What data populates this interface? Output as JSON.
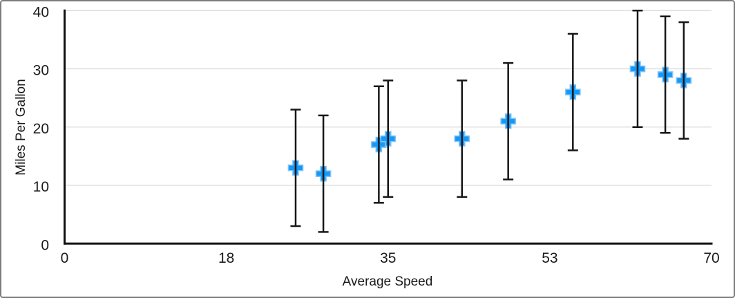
{
  "chart_data": {
    "type": "scatter",
    "title": "",
    "xlabel": "Average Speed",
    "ylabel": "Miles Per Gallon",
    "xlim": [
      0,
      70
    ],
    "ylim": [
      0,
      40
    ],
    "grid": "horizontal-only",
    "legend_position": "none",
    "x_ticks": [
      {
        "value": 0,
        "label": "0"
      },
      {
        "value": 17.5,
        "label": "18"
      },
      {
        "value": 35,
        "label": "35"
      },
      {
        "value": 52.5,
        "label": "53"
      },
      {
        "value": 70,
        "label": "70"
      }
    ],
    "y_ticks": [
      {
        "value": 0,
        "label": "0"
      },
      {
        "value": 10,
        "label": "10"
      },
      {
        "value": 20,
        "label": "20"
      },
      {
        "value": 30,
        "label": "30"
      },
      {
        "value": 40,
        "label": "40"
      }
    ],
    "series": [
      {
        "name": "Miles Per Gallon",
        "marker": "plus",
        "marker_color": "#1598F6",
        "marker_outline_color": "#7EC3FA",
        "error_bars": {
          "type": "fixed-value",
          "plus": 10,
          "minus": 10,
          "color": "#161616"
        },
        "points": [
          {
            "x": 25,
            "y": 13
          },
          {
            "x": 28,
            "y": 12
          },
          {
            "x": 34,
            "y": 17
          },
          {
            "x": 35,
            "y": 18
          },
          {
            "x": 43,
            "y": 18
          },
          {
            "x": 48,
            "y": 21
          },
          {
            "x": 55,
            "y": 26
          },
          {
            "x": 62,
            "y": 30
          },
          {
            "x": 65,
            "y": 29
          },
          {
            "x": 67,
            "y": 28
          }
        ]
      }
    ],
    "colors": {
      "axis": "#111111",
      "gridline": "#DADADA",
      "text": "#1A1A1A",
      "background": "#FFFFFF",
      "frame_border": "#7B7B7B"
    }
  }
}
